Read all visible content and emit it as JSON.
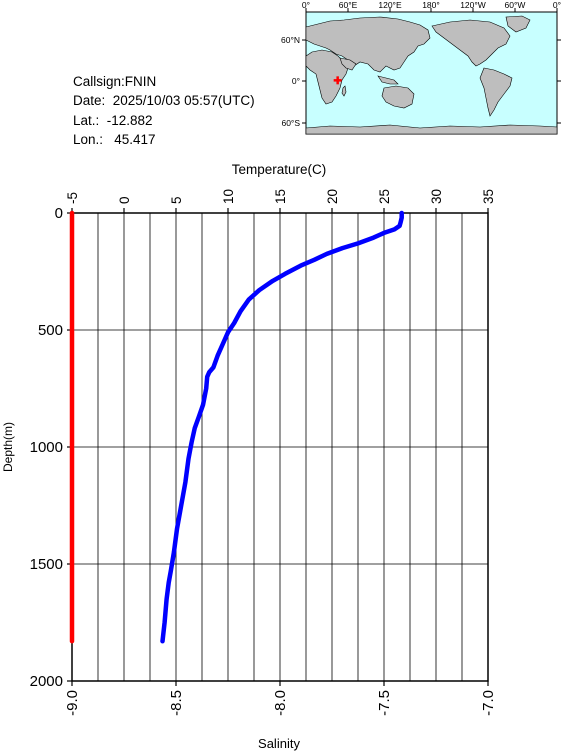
{
  "info": {
    "callsign": "Callsign:FNIN",
    "date": "Date:  2025/10/03 05:57(UTC)",
    "lat": "Lat.:  -12.882",
    "lon": "Lon.:   45.417"
  },
  "map": {
    "lon_labels": [
      "0°",
      "60°E",
      "120°E",
      "180°",
      "120°W",
      "60°W",
      "0°"
    ],
    "lat_labels": [
      "60°N",
      "0°",
      "60°S"
    ],
    "station": {
      "lon": 45.417,
      "lat": -12.882
    },
    "colors": {
      "ocean": "#c8ffff",
      "land": "#bebebe",
      "marker": "#ff0000"
    }
  },
  "chart_data": {
    "type": "line",
    "title": "",
    "top_axis": {
      "label": "Temperature(C)",
      "range": [
        -5,
        35
      ],
      "ticks": [
        "-5",
        "0",
        "5",
        "10",
        "15",
        "20",
        "25",
        "30",
        "35"
      ]
    },
    "bottom_axis": {
      "label": "Salinity",
      "range": [
        -9.0,
        -7.0
      ],
      "ticks": [
        "-9.0",
        "-8.5",
        "-8.0",
        "-7.5",
        "-7.0"
      ]
    },
    "y_axis": {
      "label": "Depth(m)",
      "range": [
        0,
        2000
      ],
      "inverted": true,
      "ticks": [
        "0",
        "500",
        "1000",
        "1500",
        "2000"
      ]
    },
    "grid": true,
    "series": [
      {
        "axis": "top",
        "color": "#0000ff",
        "points": [
          [
            26.7,
            0
          ],
          [
            26.7,
            20
          ],
          [
            26.6,
            40
          ],
          [
            26.5,
            55
          ],
          [
            26.0,
            70
          ],
          [
            25.0,
            85
          ],
          [
            24.0,
            105
          ],
          [
            22.5,
            130
          ],
          [
            21.0,
            150
          ],
          [
            19.5,
            175
          ],
          [
            18.3,
            200
          ],
          [
            17.0,
            225
          ],
          [
            15.5,
            260
          ],
          [
            14.3,
            290
          ],
          [
            13.0,
            330
          ],
          [
            12.0,
            370
          ],
          [
            11.2,
            420
          ],
          [
            10.6,
            470
          ],
          [
            10.0,
            510
          ],
          [
            9.5,
            560
          ],
          [
            9.0,
            610
          ],
          [
            8.6,
            660
          ],
          [
            8.2,
            680
          ],
          [
            8.0,
            700
          ],
          [
            7.9,
            750
          ],
          [
            7.6,
            820
          ],
          [
            7.2,
            870
          ],
          [
            6.8,
            920
          ],
          [
            6.5,
            980
          ],
          [
            6.2,
            1050
          ],
          [
            5.9,
            1150
          ],
          [
            5.5,
            1250
          ],
          [
            5.1,
            1350
          ],
          [
            4.8,
            1450
          ],
          [
            4.5,
            1530
          ],
          [
            4.3,
            1580
          ],
          [
            4.1,
            1650
          ],
          [
            3.9,
            1750
          ],
          [
            3.7,
            1830
          ]
        ]
      },
      {
        "axis": "bottom",
        "color": "#ff0000",
        "points": [
          [
            -9.0,
            0
          ],
          [
            -9.0,
            1830
          ]
        ]
      }
    ]
  }
}
